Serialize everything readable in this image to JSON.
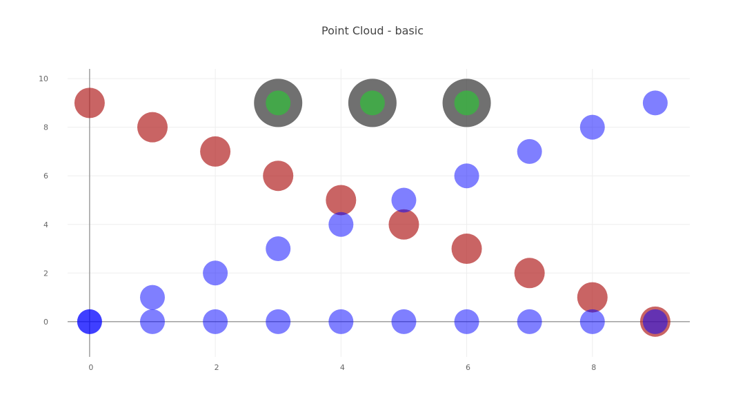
{
  "chart_data": {
    "type": "scatter",
    "title": "Point Cloud - basic",
    "xlabel": "",
    "ylabel": "",
    "xlim": [
      -0.35,
      9.55
    ],
    "ylim": [
      -1.45,
      10.4
    ],
    "xticks": [
      0,
      2,
      4,
      6,
      8
    ],
    "yticks": [
      0,
      2,
      4,
      6,
      8,
      10
    ],
    "grid": true,
    "zero_lines": true,
    "series": [
      {
        "color": "#b22222",
        "opacity": 0.7,
        "marker_size": "large",
        "points": [
          {
            "x": 0,
            "y": 9
          },
          {
            "x": 1,
            "y": 8
          },
          {
            "x": 2,
            "y": 7
          },
          {
            "x": 3,
            "y": 6
          },
          {
            "x": 4,
            "y": 5
          },
          {
            "x": 5,
            "y": 4
          },
          {
            "x": 6,
            "y": 3
          },
          {
            "x": 7,
            "y": 2
          },
          {
            "x": 8,
            "y": 1
          },
          {
            "x": 9,
            "y": 0
          }
        ]
      },
      {
        "color": "#0000ff",
        "opacity": 0.5,
        "marker_size": "medium",
        "points": [
          {
            "x": 0,
            "y": 0
          },
          {
            "x": 1,
            "y": 1
          },
          {
            "x": 2,
            "y": 2
          },
          {
            "x": 3,
            "y": 3
          },
          {
            "x": 4,
            "y": 4
          },
          {
            "x": 5,
            "y": 5
          },
          {
            "x": 6,
            "y": 6
          },
          {
            "x": 7,
            "y": 7
          },
          {
            "x": 8,
            "y": 8
          },
          {
            "x": 9,
            "y": 9
          }
        ]
      },
      {
        "color": "#0000ff",
        "opacity": 0.5,
        "marker_size": "medium",
        "points": [
          {
            "x": 0,
            "y": 0
          },
          {
            "x": 1,
            "y": 0
          },
          {
            "x": 2,
            "y": 0
          },
          {
            "x": 3,
            "y": 0
          },
          {
            "x": 4,
            "y": 0
          },
          {
            "x": 5,
            "y": 0
          },
          {
            "x": 6,
            "y": 0
          },
          {
            "x": 7,
            "y": 0
          },
          {
            "x": 8,
            "y": 0
          },
          {
            "x": 9,
            "y": 0
          }
        ]
      },
      {
        "color": "#3cb043",
        "outline_color": "#333333",
        "opacity": 0.7,
        "marker_size": "small with thick outline",
        "points": [
          {
            "x": 3,
            "y": 9
          },
          {
            "x": 4.5,
            "y": 9
          },
          {
            "x": 6,
            "y": 9
          }
        ]
      }
    ]
  }
}
